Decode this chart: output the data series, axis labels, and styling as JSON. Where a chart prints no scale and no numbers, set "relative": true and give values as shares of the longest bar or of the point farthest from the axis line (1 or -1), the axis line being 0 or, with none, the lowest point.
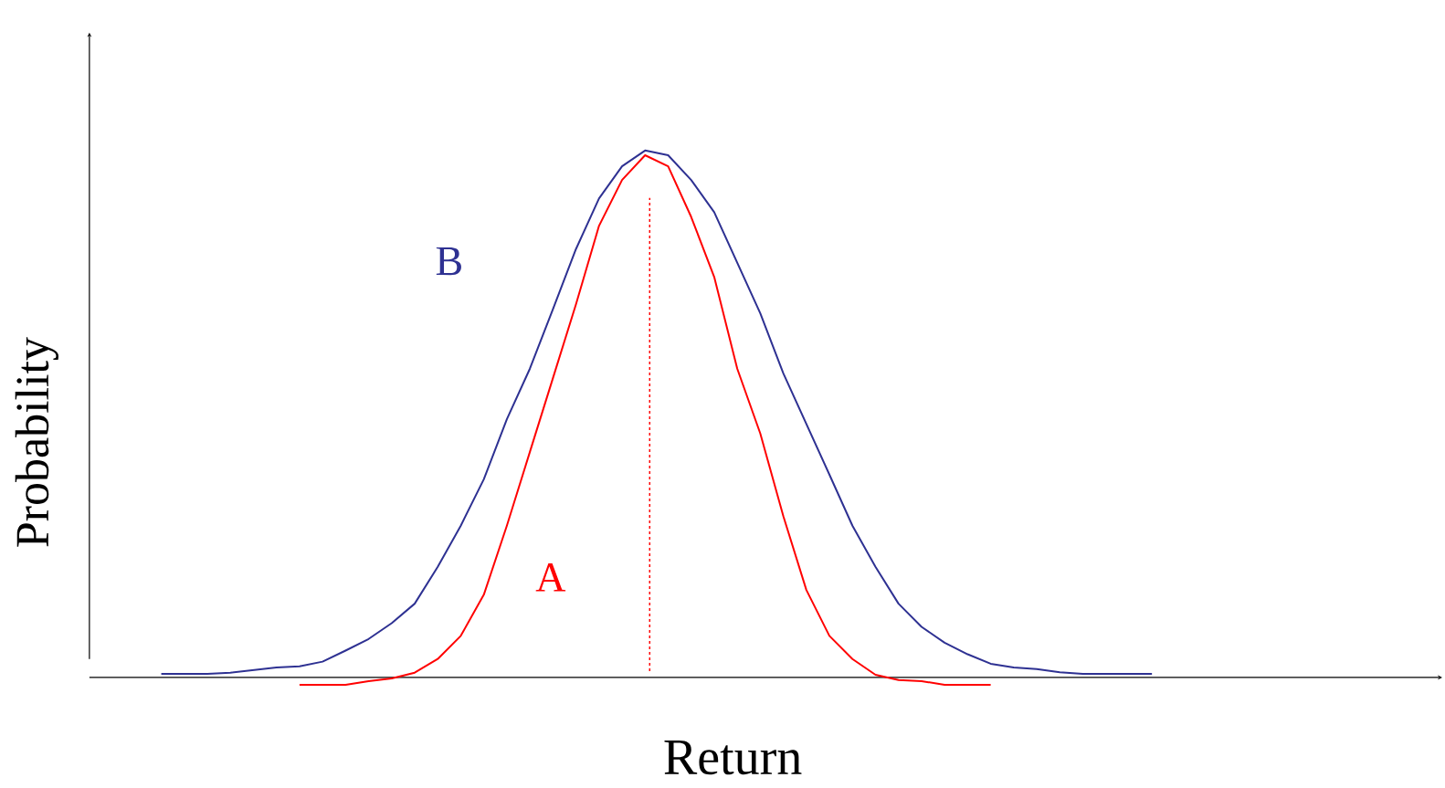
{
  "chart_data": {
    "type": "line",
    "relative": true,
    "xlabel": "Return",
    "ylabel": "Probability",
    "categories": [
      null,
      null,
      null,
      null,
      null,
      null,
      null,
      null,
      null,
      null,
      null,
      null,
      null,
      null,
      null,
      null,
      null,
      null,
      null,
      null,
      null,
      null,
      null,
      null,
      null,
      null,
      null,
      null,
      null,
      null,
      null,
      null,
      null,
      null,
      null,
      null,
      null,
      null,
      null,
      null,
      null,
      null,
      null,
      null
    ],
    "series": [
      {
        "name": "B",
        "color": "#2e3192",
        "values": [
          0.007,
          0.007,
          0.007,
          0.009,
          0.014,
          0.019,
          0.021,
          0.03,
          0.051,
          0.073,
          0.103,
          0.14,
          0.21,
          0.288,
          0.376,
          0.49,
          0.586,
          0.699,
          0.813,
          0.909,
          0.97,
          1.0,
          0.991,
          0.944,
          0.883,
          0.787,
          0.691,
          0.577,
          0.481,
          0.385,
          0.288,
          0.21,
          0.14,
          0.096,
          0.066,
          0.044,
          0.026,
          0.019,
          0.016,
          0.01,
          0.007,
          0.007,
          0.007,
          0.007
        ]
      },
      {
        "name": "A",
        "color": "#ff0000",
        "values": [
          null,
          null,
          null,
          null,
          null,
          null,
          -0.014,
          -0.014,
          -0.014,
          -0.007,
          -0.002,
          0.009,
          0.035,
          0.079,
          0.157,
          0.288,
          0.428,
          0.568,
          0.708,
          0.857,
          0.944,
          0.991,
          0.97,
          0.874,
          0.76,
          0.586,
          0.463,
          0.306,
          0.166,
          0.079,
          0.035,
          0.005,
          -0.005,
          -0.007,
          -0.014,
          -0.014,
          -0.014,
          null,
          null,
          null,
          null,
          null,
          null,
          null
        ]
      }
    ],
    "line_style": "solid"
  }
}
